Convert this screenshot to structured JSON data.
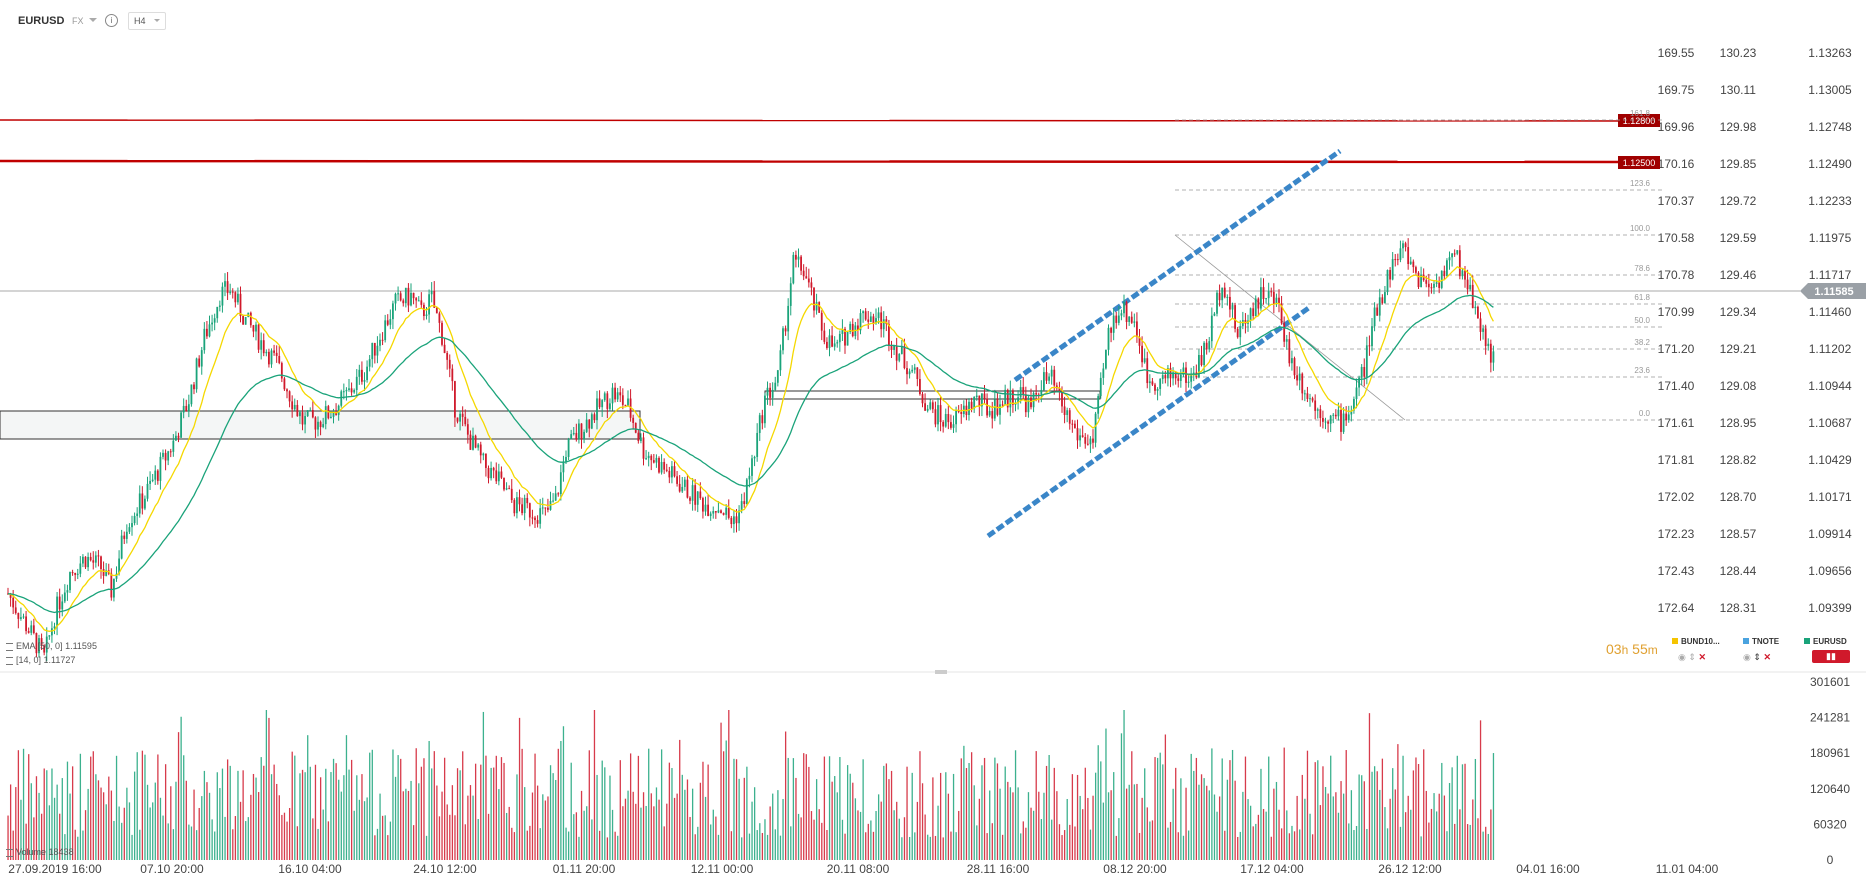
{
  "header": {
    "symbol": "EURUSD",
    "market": "FX",
    "timeframe": "H4",
    "info_icon": "info-icon"
  },
  "indicators": [
    {
      "label": "EMA",
      "params": "[50, 0]",
      "value": "1.11595"
    },
    {
      "label": "",
      "params": "[14, 0]",
      "value": "1.11727"
    }
  ],
  "volume_label": {
    "label": "Volume",
    "value": "18438"
  },
  "timer": {
    "hours": "03",
    "h": "h",
    "minutes": "55",
    "m": "m"
  },
  "legend": [
    {
      "name": "BUND10...",
      "color": "#f5c400"
    },
    {
      "name": "TNOTE",
      "color": "#4aa3df"
    },
    {
      "name": "EURUSD",
      "color": "#1aa37a"
    }
  ],
  "colors": {
    "up": "#1aa37a",
    "down": "#d0192b",
    "ema50": "#1aa37a",
    "ema14": "#f5d800",
    "resistance": "#c00000",
    "channel": "#3a86c8",
    "fib": "#999999"
  },
  "chart_data": {
    "type": "candlestick",
    "symbol": "EURUSD",
    "timeframe": "H4",
    "price_axis_right": [
      "1.13263",
      "1.13005",
      "1.12748",
      "1.12490",
      "1.12233",
      "1.11975",
      "1.11717",
      "1.11460",
      "1.11202",
      "1.10944",
      "1.10687",
      "1.10429",
      "1.10171",
      "1.09914",
      "1.09656",
      "1.09399"
    ],
    "price_axis_tnote": [
      "130.23",
      "130.11",
      "129.98",
      "129.85",
      "129.72",
      "129.59",
      "129.46",
      "129.34",
      "129.21",
      "129.08",
      "128.95",
      "128.82",
      "128.70",
      "128.57",
      "128.44",
      "128.31"
    ],
    "price_axis_bund": [
      "169.55",
      "169.75",
      "169.96",
      "170.16",
      "170.37",
      "170.58",
      "170.78",
      "170.99",
      "171.20",
      "171.40",
      "171.61",
      "171.81",
      "172.02",
      "172.23",
      "172.43",
      "172.64"
    ],
    "current_price": "1.11585",
    "resistance_levels": [
      "1.12800",
      "1.12500"
    ],
    "fib_levels": [
      "161.8",
      "123.6",
      "100.0",
      "78.6",
      "61.8",
      "50.0",
      "38.2",
      "23.6",
      "0.0"
    ],
    "x_ticks": [
      "27.09.2019  16:00",
      "07.10  20:00",
      "16.10  04:00",
      "24.10  12:00",
      "01.11  20:00",
      "12.11  00:00",
      "20.11  08:00",
      "28.11  16:00",
      "08.12  20:00",
      "17.12  04:00",
      "26.12  12:00",
      "04.01  16:00",
      "11.01  04:00"
    ],
    "volume_axis": [
      "301601",
      "241281",
      "180961",
      "120640",
      "60320",
      "0"
    ],
    "series": [
      {
        "name": "EMA",
        "period": 50
      },
      {
        "name": "",
        "period": 14
      }
    ],
    "price_path": [
      [
        0,
        1.095
      ],
      [
        8,
        1.0925
      ],
      [
        14,
        1.0905
      ],
      [
        18,
        1.0935
      ],
      [
        24,
        1.0965
      ],
      [
        30,
        1.0975
      ],
      [
        36,
        1.0968
      ],
      [
        40,
        1.0952
      ],
      [
        46,
        1.1
      ],
      [
        52,
        1.1015
      ],
      [
        58,
        1.1035
      ],
      [
        64,
        1.1055
      ],
      [
        70,
        1.1085
      ],
      [
        76,
        1.1128
      ],
      [
        82,
        1.1158
      ],
      [
        86,
        1.1162
      ],
      [
        92,
        1.114
      ],
      [
        98,
        1.1125
      ],
      [
        104,
        1.111
      ],
      [
        110,
        1.1085
      ],
      [
        114,
        1.107
      ],
      [
        120,
        1.107
      ],
      [
        126,
        1.1078
      ],
      [
        132,
        1.109
      ],
      [
        138,
        1.1105
      ],
      [
        144,
        1.113
      ],
      [
        150,
        1.1152
      ],
      [
        156,
        1.1157
      ],
      [
        160,
        1.1145
      ],
      [
        164,
        1.1155
      ],
      [
        168,
        1.113
      ],
      [
        173,
        1.108
      ],
      [
        178,
        1.106
      ],
      [
        184,
        1.104
      ],
      [
        190,
        1.1028
      ],
      [
        196,
        1.1012
      ],
      [
        202,
        1.1008
      ],
      [
        208,
        1.1005
      ],
      [
        212,
        1.1015
      ],
      [
        216,
        1.105
      ],
      [
        222,
        1.1065
      ],
      [
        228,
        1.1078
      ],
      [
        234,
        1.109
      ],
      [
        240,
        1.108
      ],
      [
        246,
        1.105
      ],
      [
        252,
        1.104
      ],
      [
        258,
        1.103
      ],
      [
        264,
        1.102
      ],
      [
        270,
        1.1012
      ],
      [
        276,
        1.101
      ],
      [
        280,
        1.1
      ],
      [
        284,
        1.101
      ],
      [
        288,
        1.104
      ],
      [
        293,
        1.1085
      ],
      [
        298,
        1.11
      ],
      [
        304,
        1.118
      ],
      [
        308,
        1.1175
      ],
      [
        312,
        1.115
      ],
      [
        316,
        1.113
      ],
      [
        320,
        1.112
      ],
      [
        326,
        1.1135
      ],
      [
        332,
        1.1145
      ],
      [
        338,
        1.114
      ],
      [
        344,
        1.112
      ],
      [
        350,
        1.1105
      ],
      [
        356,
        1.108
      ],
      [
        362,
        1.107
      ],
      [
        368,
        1.1072
      ],
      [
        374,
        1.1085
      ],
      [
        380,
        1.1078
      ],
      [
        386,
        1.1085
      ],
      [
        392,
        1.109
      ],
      [
        396,
        1.1078
      ],
      [
        400,
        1.1098
      ],
      [
        404,
        1.1098
      ],
      [
        408,
        1.108
      ],
      [
        414,
        1.106
      ],
      [
        420,
        1.1055
      ],
      [
        426,
        1.113
      ],
      [
        430,
        1.115
      ],
      [
        436,
        1.114
      ],
      [
        441,
        1.11
      ],
      [
        446,
        1.1098
      ],
      [
        452,
        1.1103
      ],
      [
        458,
        1.11
      ],
      [
        464,
        1.1122
      ],
      [
        470,
        1.117
      ],
      [
        476,
        1.113
      ],
      [
        480,
        1.1145
      ],
      [
        486,
        1.116
      ],
      [
        492,
        1.115
      ],
      [
        496,
        1.1115
      ],
      [
        500,
        1.11
      ],
      [
        506,
        1.108
      ],
      [
        512,
        1.1072
      ],
      [
        516,
        1.107
      ],
      [
        520,
        1.108
      ],
      [
        525,
        1.1108
      ],
      [
        530,
        1.115
      ],
      [
        536,
        1.118
      ],
      [
        540,
        1.119
      ],
      [
        546,
        1.117
      ],
      [
        552,
        1.1165
      ],
      [
        556,
        1.1175
      ],
      [
        560,
        1.1185
      ],
      [
        564,
        1.117
      ],
      [
        568,
        1.115
      ],
      [
        572,
        1.1125
      ],
      [
        576,
        1.111
      ]
    ],
    "volume_profile": [
      0.3,
      0.9,
      0.2,
      0.5,
      0.4,
      0.8,
      0.2,
      0.6,
      0.3,
      0.4,
      0.5,
      0.9,
      0.3,
      0.2,
      0.7,
      0.4,
      1.0,
      0.3,
      0.6,
      0.5
    ]
  }
}
